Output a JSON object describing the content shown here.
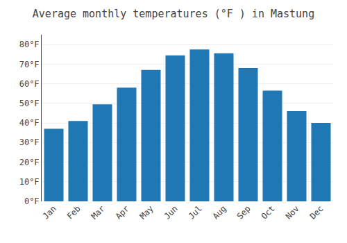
{
  "chart_data": {
    "type": "bar",
    "title": "Average monthly temperatures (°F ) in Mastung",
    "categories": [
      "Jan",
      "Feb",
      "Mar",
      "Apr",
      "May",
      "Jun",
      "Jul",
      "Aug",
      "Sep",
      "Oct",
      "Nov",
      "Dec"
    ],
    "values": [
      37,
      41,
      49.5,
      58,
      67,
      74.5,
      77.5,
      75.5,
      68,
      56.5,
      46,
      40
    ],
    "ylim": [
      0,
      85
    ],
    "yticks": [
      {
        "value": 0,
        "label": "0°F"
      },
      {
        "value": 10,
        "label": "10°F"
      },
      {
        "value": 20,
        "label": "20°F"
      },
      {
        "value": 30,
        "label": "30°F"
      },
      {
        "value": 40,
        "label": "40°F"
      },
      {
        "value": 50,
        "label": "50°F"
      },
      {
        "value": 60,
        "label": "60°F"
      },
      {
        "value": 70,
        "label": "70°F"
      },
      {
        "value": 80,
        "label": "80°F"
      }
    ],
    "grid": true
  }
}
